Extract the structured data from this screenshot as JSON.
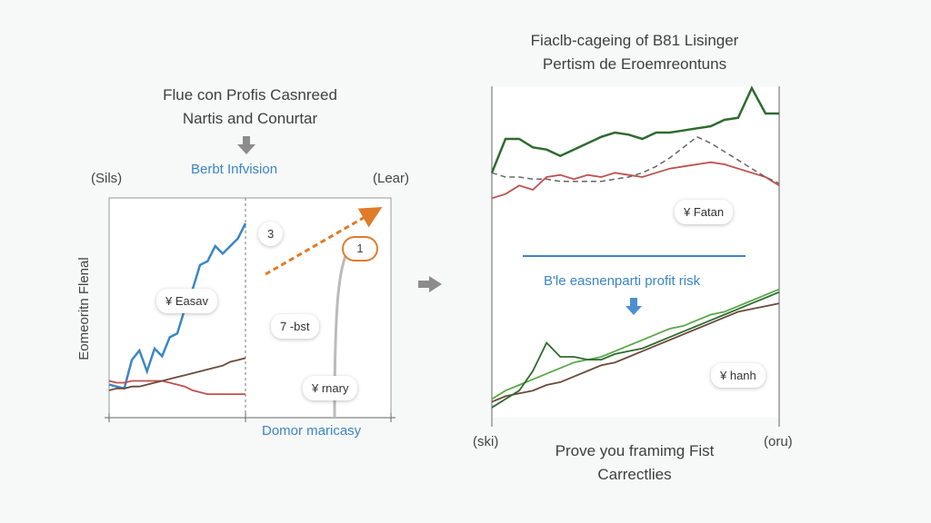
{
  "left_panel": {
    "title_line1": "Flue con Profis Casnreed",
    "title_line2": "Nartis and Conurtar",
    "blue_label": "Berbt Infvision",
    "corner_left": "(Sils)",
    "corner_right": "(Lear)",
    "ylabel": "Eomeoritn Flenal",
    "bottom_label": "Domor maricasy",
    "bubble_a": "¥ Easav",
    "bubble_3": "3",
    "bubble_1": "1",
    "bubble_7": "7 -bst",
    "bubble_x": "¥ rnary"
  },
  "right_panel": {
    "title_line1": "Fiaclb-cageing of B81 Lisinger",
    "title_line2": "Pertism de Eroemreontuns",
    "bubble_fatan": "¥ Fatan",
    "blue_label": "B'le easnenparti profit risk",
    "bubble_hanh": "¥ hanh",
    "corner_left": "(ski)",
    "corner_right": "(oru)",
    "footer_line1": "Prove you framimg Fist",
    "footer_line2": "Carrectlies"
  },
  "colors": {
    "blue": "#3a86c8",
    "red": "#c0504d",
    "orange": "#e07b2a",
    "green_dark": "#2e6b2e",
    "green_light": "#5aa84a",
    "brown": "#6b4a3a",
    "gray_dash": "#666666"
  },
  "chart_data": [
    {
      "type": "line",
      "x": [
        0,
        1,
        2,
        3,
        4,
        5,
        6,
        7,
        8,
        9,
        10,
        11,
        12,
        13,
        14,
        15,
        16,
        17,
        18
      ],
      "series": [
        {
          "values": [
            15,
            14,
            13,
            28,
            33,
            22,
            34,
            30,
            40,
            42,
            55,
            65,
            78,
            80,
            88,
            84,
            88,
            92,
            100
          ]
        },
        {
          "values": [
            17,
            16,
            16,
            17,
            17,
            17,
            17,
            17,
            16,
            15,
            14,
            12,
            11,
            10,
            10,
            10,
            10,
            10,
            10
          ]
        },
        {
          "values": [
            12,
            13,
            13,
            14,
            14,
            15,
            16,
            17,
            18,
            19,
            20,
            21,
            22,
            23,
            24,
            25,
            27,
            28,
            29
          ]
        }
      ],
      "annotation_line": {
        "type": "dashed-arrow",
        "color": "orange"
      }
    },
    {
      "type": "line",
      "x": [
        0,
        1,
        2,
        3,
        4,
        5,
        6,
        7,
        8,
        9,
        10,
        11,
        12,
        13,
        14,
        15,
        16,
        17,
        18,
        19,
        20,
        21
      ],
      "series_top": [
        {
          "values": [
            72,
            88,
            88,
            84,
            83,
            80,
            83,
            86,
            89,
            91,
            90,
            88,
            91,
            91,
            92,
            93,
            94,
            97,
            98,
            112,
            100,
            100
          ]
        },
        {
          "values": [
            60,
            62,
            66,
            64,
            70,
            71,
            69,
            71,
            70,
            72,
            71,
            70,
            72,
            74,
            75,
            76,
            77,
            76,
            74,
            72,
            70,
            66
          ]
        },
        {
          "values": [
            72,
            70,
            70,
            69,
            69,
            68,
            68,
            68,
            68,
            69,
            70,
            72,
            75,
            79,
            84,
            89,
            86,
            82,
            78,
            74,
            70,
            67
          ],
          "style": "dashed"
        }
      ],
      "series_bottom": [
        {
          "values": [
            5,
            8,
            10,
            12,
            14,
            16,
            18,
            19,
            20,
            22,
            24,
            26,
            28,
            30,
            31,
            33,
            35,
            36,
            38,
            40,
            42,
            44
          ]
        },
        {
          "values": [
            4,
            6,
            7,
            8,
            10,
            11,
            13,
            15,
            17,
            18,
            20,
            22,
            24,
            26,
            28,
            30,
            32,
            34,
            36,
            37,
            38,
            39
          ]
        },
        {
          "values": [
            2,
            5,
            8,
            15,
            25,
            20,
            20,
            19,
            19,
            21,
            22,
            23,
            25,
            27,
            29,
            31,
            33,
            35,
            37,
            39,
            41,
            43
          ]
        }
      ]
    }
  ]
}
